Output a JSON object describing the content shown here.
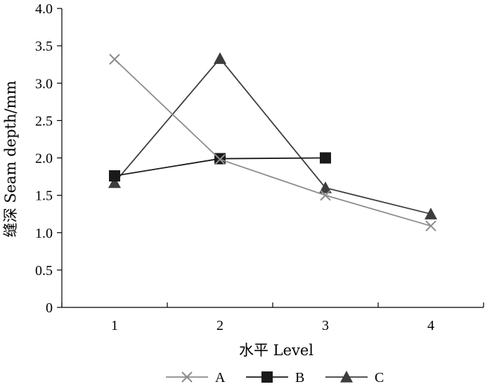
{
  "chart_data": {
    "type": "line",
    "xlabel": "水平 Level",
    "ylabel": "缝深 Seam depth/mm",
    "x": [
      1,
      2,
      3,
      4
    ],
    "x_tick_labels": [
      "1",
      "2",
      "3",
      "4"
    ],
    "y_tick_labels": [
      "0",
      "0.5",
      "1.0",
      "1.5",
      "2.0",
      "2.5",
      "3.0",
      "3.5",
      "4.0"
    ],
    "xlim": [
      0.5,
      4.5
    ],
    "ylim": [
      0,
      4.0
    ],
    "grid": false,
    "legend_position": "bottom",
    "series": [
      {
        "name": "A",
        "marker": "x",
        "color": "#8c8c8c",
        "values": [
          3.32,
          1.98,
          1.5,
          1.09
        ]
      },
      {
        "name": "B",
        "marker": "square",
        "color": "#1a1a1a",
        "values": [
          1.76,
          1.99,
          2.0,
          null
        ]
      },
      {
        "name": "C",
        "marker": "triangle",
        "color": "#3d3d3d",
        "values": [
          1.67,
          3.33,
          1.6,
          1.25
        ]
      }
    ]
  }
}
